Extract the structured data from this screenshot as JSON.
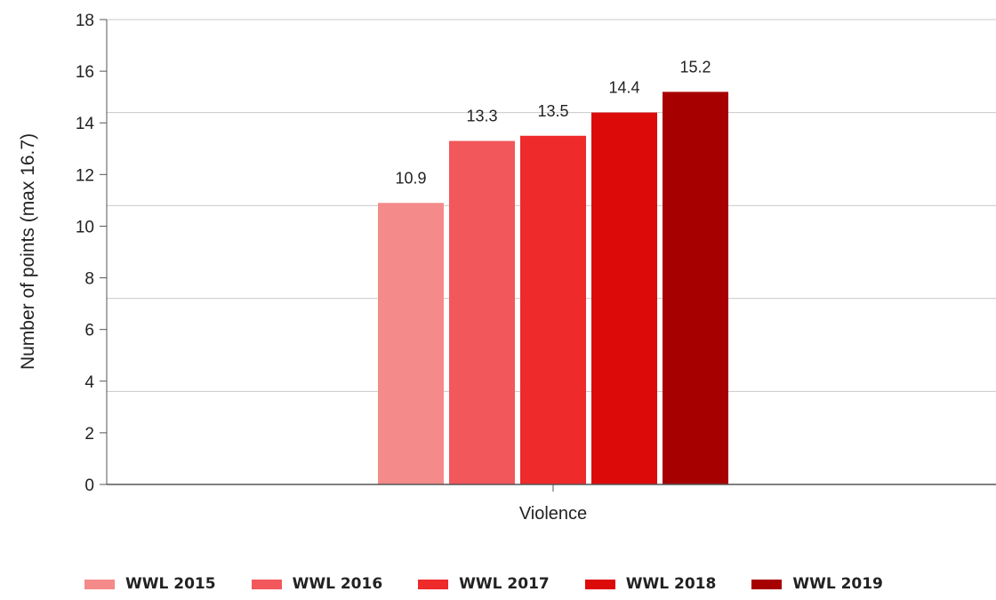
{
  "chart_data": {
    "type": "bar",
    "categories": [
      "Violence"
    ],
    "series": [
      {
        "name": "WWL 2015",
        "values": [
          10.9
        ],
        "color": "#f48a8a"
      },
      {
        "name": "WWL 2016",
        "values": [
          13.3
        ],
        "color": "#f2575b"
      },
      {
        "name": "WWL 2017",
        "values": [
          13.5
        ],
        "color": "#ee2a2a"
      },
      {
        "name": "WWL 2018",
        "values": [
          14.4
        ],
        "color": "#dd0a0a"
      },
      {
        "name": "WWL 2019",
        "values": [
          15.2
        ],
        "color": "#a70000"
      }
    ],
    "data_labels": [
      "10.9",
      "13.3",
      "13.5",
      "14.4",
      "15.2"
    ],
    "ylabel": "Number of points (max 16.7)",
    "xlabel": "",
    "ylim": [
      0,
      18
    ],
    "yticks": [
      0,
      2,
      4,
      6,
      8,
      10,
      12,
      14,
      16,
      18
    ],
    "gridlines": [
      3.6,
      7.2,
      10.8,
      14.4,
      18
    ],
    "legend_position": "bottom"
  }
}
